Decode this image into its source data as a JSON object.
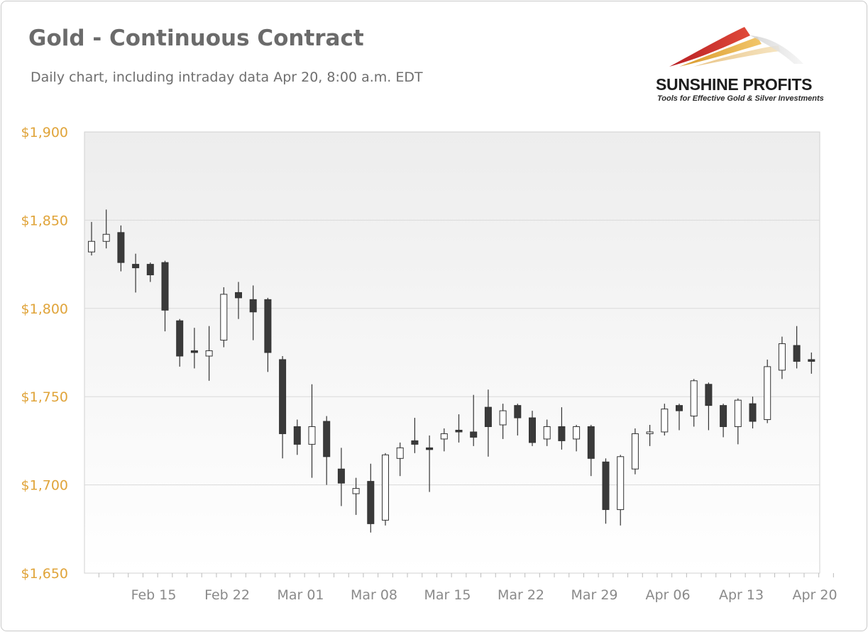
{
  "header": {
    "title": "Gold - Continuous Contract",
    "subtitle": "Daily chart, including intraday data Apr 20, 8:00 a.m. EDT"
  },
  "logo": {
    "name": "SUNSHINE PROFITS",
    "tagline": "Tools for Effective Gold & Silver Investments",
    "colors": [
      "#c0282d",
      "#d89b2b",
      "#e8c98a"
    ]
  },
  "colors": {
    "axis_label": "#e0a43a",
    "x_label": "#8a8a8a",
    "grid": "#d9d9d9",
    "bearish": "#3a3a3a",
    "bullish": "#ffffff",
    "wick": "#333333",
    "plot_top": "#efefef",
    "plot_bottom": "#ffffff"
  },
  "chart_data": {
    "type": "candlestick",
    "title": "Gold - Continuous Contract",
    "ylim": [
      1650,
      1900
    ],
    "y_ticks": [
      1650,
      1700,
      1750,
      1800,
      1850,
      1900
    ],
    "y_tick_labels": [
      "$1,650",
      "$1,700",
      "$1,750",
      "$1,800",
      "$1,850",
      "$1,900"
    ],
    "grid": true,
    "x_ticks": [
      "Feb 15",
      "Feb 22",
      "Mar 01",
      "Mar 08",
      "Mar 15",
      "Mar 22",
      "Mar 29",
      "Apr 06",
      "Apr 13",
      "Apr 20"
    ],
    "x_tick_days": [
      5,
      10,
      15,
      20,
      25,
      30,
      35,
      40,
      45,
      50
    ],
    "candles": [
      {
        "day": 0,
        "open": 1832,
        "high": 1849,
        "low": 1830,
        "close": 1838
      },
      {
        "day": 1,
        "open": 1838,
        "high": 1856,
        "low": 1834,
        "close": 1842
      },
      {
        "day": 2,
        "open": 1843,
        "high": 1847,
        "low": 1821,
        "close": 1826
      },
      {
        "day": 3,
        "open": 1825,
        "high": 1831,
        "low": 1809,
        "close": 1823
      },
      {
        "day": 4,
        "open": 1825,
        "high": 1826,
        "low": 1815,
        "close": 1819
      },
      {
        "day": 5,
        "open": 1826,
        "high": 1827,
        "low": 1787,
        "close": 1799
      },
      {
        "day": 6,
        "open": 1793,
        "high": 1794,
        "low": 1767,
        "close": 1773
      },
      {
        "day": 7,
        "open": 1776,
        "high": 1789,
        "low": 1766,
        "close": 1775
      },
      {
        "day": 8,
        "open": 1773,
        "high": 1790,
        "low": 1759,
        "close": 1776
      },
      {
        "day": 9,
        "open": 1782,
        "high": 1812,
        "low": 1778,
        "close": 1808
      },
      {
        "day": 10,
        "open": 1809,
        "high": 1815,
        "low": 1794,
        "close": 1806
      },
      {
        "day": 11,
        "open": 1805,
        "high": 1813,
        "low": 1782,
        "close": 1798
      },
      {
        "day": 12,
        "open": 1805,
        "high": 1806,
        "low": 1764,
        "close": 1775
      },
      {
        "day": 13,
        "open": 1771,
        "high": 1773,
        "low": 1715,
        "close": 1729
      },
      {
        "day": 14,
        "open": 1733,
        "high": 1737,
        "low": 1717,
        "close": 1723
      },
      {
        "day": 15,
        "open": 1723,
        "high": 1757,
        "low": 1704,
        "close": 1733
      },
      {
        "day": 16,
        "open": 1736,
        "high": 1739,
        "low": 1700,
        "close": 1716
      },
      {
        "day": 17,
        "open": 1709,
        "high": 1721,
        "low": 1688,
        "close": 1701
      },
      {
        "day": 18,
        "open": 1695,
        "high": 1704,
        "low": 1683,
        "close": 1698
      },
      {
        "day": 19,
        "open": 1702,
        "high": 1712,
        "low": 1673,
        "close": 1678
      },
      {
        "day": 20,
        "open": 1680,
        "high": 1718,
        "low": 1677,
        "close": 1717
      },
      {
        "day": 21,
        "open": 1715,
        "high": 1724,
        "low": 1705,
        "close": 1721
      },
      {
        "day": 22,
        "open": 1725,
        "high": 1738,
        "low": 1718,
        "close": 1723
      },
      {
        "day": 23,
        "open": 1721,
        "high": 1728,
        "low": 1696,
        "close": 1720
      },
      {
        "day": 24,
        "open": 1726,
        "high": 1732,
        "low": 1719,
        "close": 1729
      },
      {
        "day": 25,
        "open": 1731,
        "high": 1740,
        "low": 1724,
        "close": 1730
      },
      {
        "day": 26,
        "open": 1730,
        "high": 1751,
        "low": 1722,
        "close": 1727
      },
      {
        "day": 27,
        "open": 1744,
        "high": 1754,
        "low": 1716,
        "close": 1733
      },
      {
        "day": 28,
        "open": 1734,
        "high": 1746,
        "low": 1726,
        "close": 1742
      },
      {
        "day": 29,
        "open": 1745,
        "high": 1746,
        "low": 1728,
        "close": 1738
      },
      {
        "day": 30,
        "open": 1738,
        "high": 1742,
        "low": 1722,
        "close": 1724
      },
      {
        "day": 31,
        "open": 1726,
        "high": 1737,
        "low": 1722,
        "close": 1733
      },
      {
        "day": 32,
        "open": 1733,
        "high": 1744,
        "low": 1720,
        "close": 1725
      },
      {
        "day": 33,
        "open": 1726,
        "high": 1734,
        "low": 1719,
        "close": 1733
      },
      {
        "day": 34,
        "open": 1733,
        "high": 1734,
        "low": 1705,
        "close": 1715
      },
      {
        "day": 35,
        "open": 1713,
        "high": 1715,
        "low": 1678,
        "close": 1686
      },
      {
        "day": 36,
        "open": 1686,
        "high": 1717,
        "low": 1677,
        "close": 1716
      },
      {
        "day": 37,
        "open": 1709,
        "high": 1732,
        "low": 1706,
        "close": 1729
      },
      {
        "day": 38,
        "open": 1729,
        "high": 1734,
        "low": 1722,
        "close": 1730
      },
      {
        "day": 39,
        "open": 1730,
        "high": 1746,
        "low": 1728,
        "close": 1743
      },
      {
        "day": 40,
        "open": 1745,
        "high": 1746,
        "low": 1731,
        "close": 1742
      },
      {
        "day": 41,
        "open": 1739,
        "high": 1760,
        "low": 1733,
        "close": 1759
      },
      {
        "day": 42,
        "open": 1757,
        "high": 1758,
        "low": 1731,
        "close": 1745
      },
      {
        "day": 43,
        "open": 1745,
        "high": 1746,
        "low": 1727,
        "close": 1733
      },
      {
        "day": 44,
        "open": 1733,
        "high": 1749,
        "low": 1723,
        "close": 1748
      },
      {
        "day": 45,
        "open": 1746,
        "high": 1750,
        "low": 1732,
        "close": 1736
      },
      {
        "day": 46,
        "open": 1737,
        "high": 1771,
        "low": 1735,
        "close": 1767
      },
      {
        "day": 47,
        "open": 1765,
        "high": 1784,
        "low": 1760,
        "close": 1780
      },
      {
        "day": 48,
        "open": 1779,
        "high": 1790,
        "low": 1766,
        "close": 1770
      },
      {
        "day": 49,
        "open": 1771,
        "high": 1775,
        "low": 1763,
        "close": 1770
      }
    ]
  }
}
